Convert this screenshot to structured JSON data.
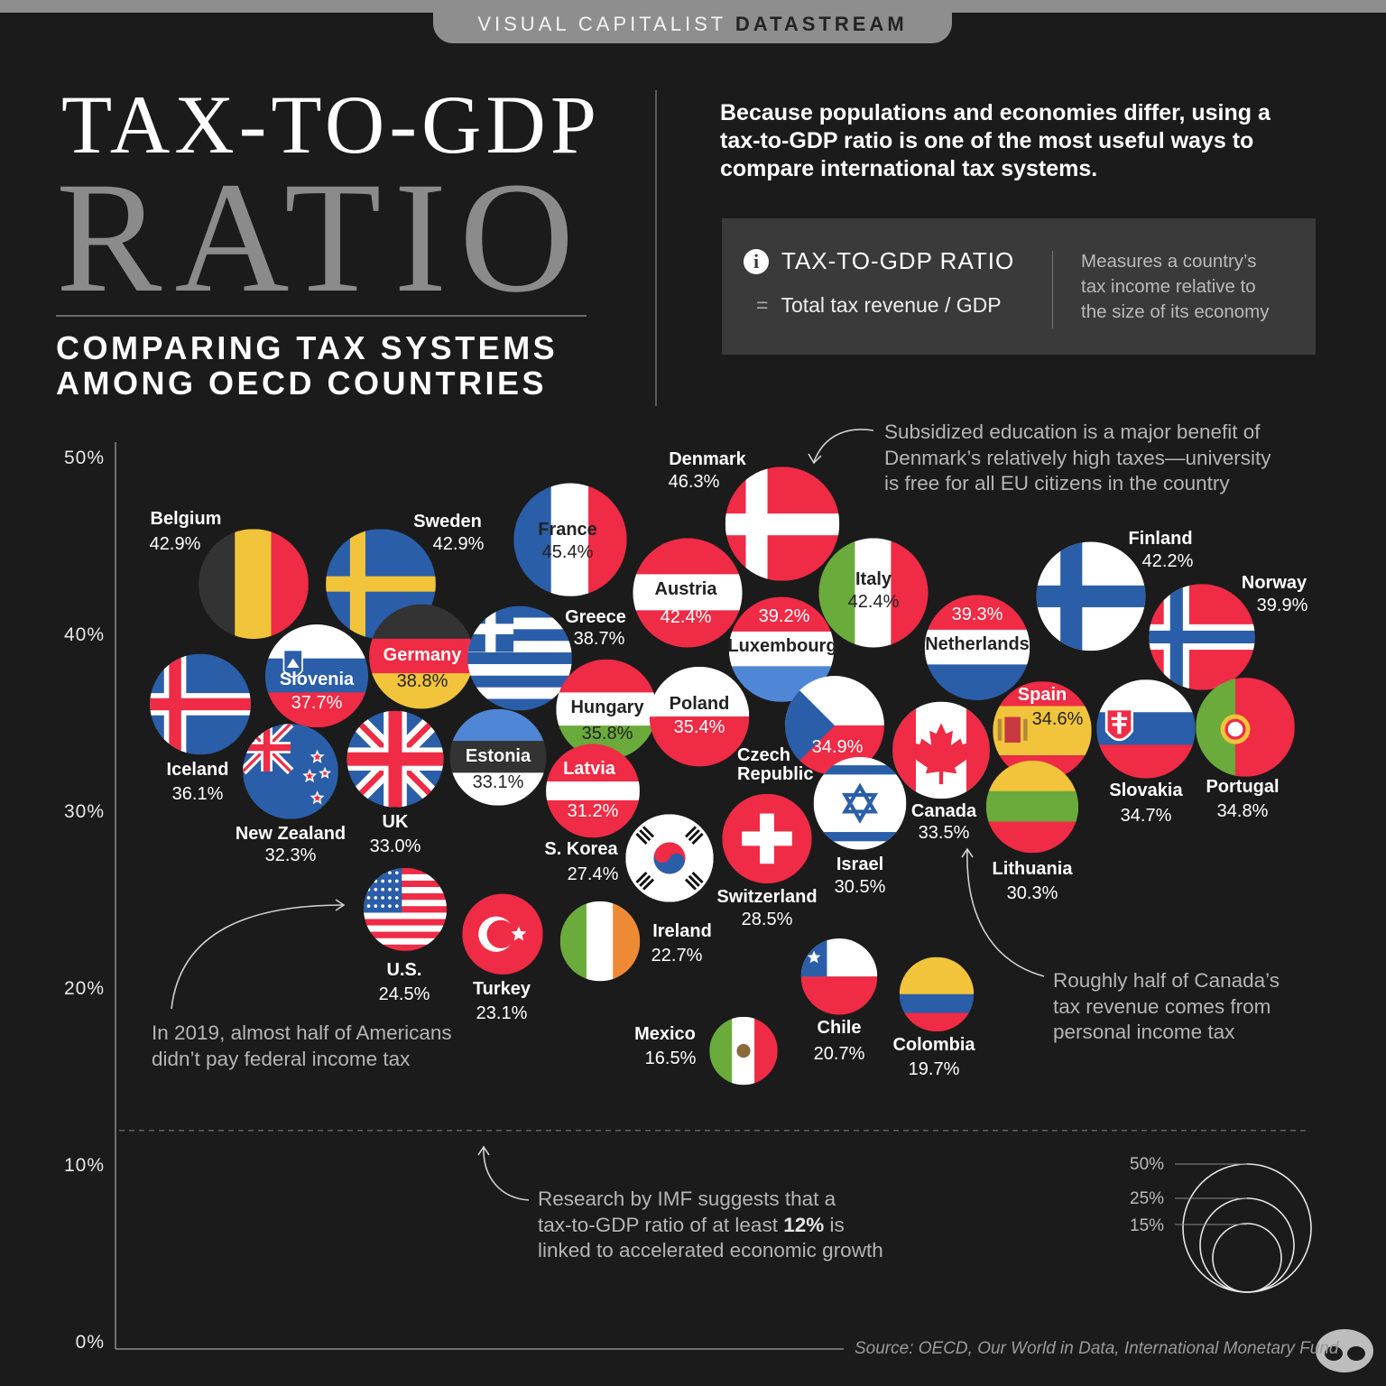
{
  "header": {
    "brand": "VISUAL CAPITALIST",
    "brand_suffix": "DATASTREAM"
  },
  "title": {
    "line1": "TAX-TO-GDP",
    "line2": "RATIO",
    "subtitle_line1": "COMPARING TAX SYSTEMS",
    "subtitle_line2": "AMONG OECD COUNTRIES"
  },
  "intro": "Because populations and economies differ, using a tax-to-GDP ratio is one of the most useful ways to compare international tax systems.",
  "definition": {
    "icon": "info-icon",
    "term": "TAX-TO-GDP RATIO",
    "equals": "=",
    "formula": "Total tax revenue / GDP",
    "description_lines": [
      "Measures a country’s",
      "tax income relative to",
      "the size of its economy"
    ]
  },
  "annotations": {
    "denmark": [
      "Subsidized education is a major benefit of",
      "Denmark’s relatively high taxes—university",
      "is free for all EU citizens in the country"
    ],
    "us": [
      "In 2019, almost half of Americans",
      "didn’t pay federal income tax"
    ],
    "canada": [
      "Roughly half of Canada’s",
      "tax revenue comes from",
      "personal income tax"
    ],
    "imf": {
      "line1": "Research by IMF suggests that a",
      "line2_pre": "tax-to-GDP ratio of at least ",
      "line2_bold": "12%",
      "line2_post": " is",
      "line3": "linked to accelerated economic growth"
    }
  },
  "source": "Source: OECD, Our World in Data, International Monetary Fund",
  "colors": {
    "background": "#1b1b1b",
    "red": "#ef2b45",
    "blue": "#2a5ea8",
    "light_blue": "#4f86d6",
    "yellow": "#f2c43b",
    "green": "#6aab3c",
    "dark": "#333333"
  },
  "chart_data": {
    "type": "bubble",
    "ylabel": "",
    "ylim": [
      0,
      50
    ],
    "y_ticks": [
      "0%",
      "10%",
      "20%",
      "30%",
      "40%",
      "50%"
    ],
    "reference_line": {
      "value": 12,
      "style": "dashed"
    },
    "size_legend": [
      "50%",
      "25%",
      "15%"
    ],
    "size_encodes": "tax-to-GDP ratio (%)",
    "countries": [
      {
        "name": "Denmark",
        "value": 46.3,
        "label": "46.3%"
      },
      {
        "name": "France",
        "value": 45.4,
        "label": "45.4%"
      },
      {
        "name": "Belgium",
        "value": 42.9,
        "label": "42.9%"
      },
      {
        "name": "Sweden",
        "value": 42.9,
        "label": "42.9%"
      },
      {
        "name": "Austria",
        "value": 42.4,
        "label": "42.4%"
      },
      {
        "name": "Italy",
        "value": 42.4,
        "label": "42.4%"
      },
      {
        "name": "Finland",
        "value": 42.2,
        "label": "42.2%"
      },
      {
        "name": "Norway",
        "value": 39.9,
        "label": "39.9%"
      },
      {
        "name": "Netherlands",
        "value": 39.3,
        "label": "39.3%"
      },
      {
        "name": "Luxembourg",
        "value": 39.2,
        "label": "39.2%"
      },
      {
        "name": "Germany",
        "value": 38.8,
        "label": "38.8%"
      },
      {
        "name": "Greece",
        "value": 38.7,
        "label": "38.7%"
      },
      {
        "name": "Slovenia",
        "value": 37.7,
        "label": "37.7%"
      },
      {
        "name": "Iceland",
        "value": 36.1,
        "label": "36.1%"
      },
      {
        "name": "Hungary",
        "value": 35.8,
        "label": "35.8%"
      },
      {
        "name": "Poland",
        "value": 35.4,
        "label": "35.4%"
      },
      {
        "name": "Czech Republic",
        "value": 34.9,
        "label": "34.9%"
      },
      {
        "name": "Portugal",
        "value": 34.8,
        "label": "34.8%"
      },
      {
        "name": "Slovakia",
        "value": 34.7,
        "label": "34.7%"
      },
      {
        "name": "Spain",
        "value": 34.6,
        "label": "34.6%"
      },
      {
        "name": "Canada",
        "value": 33.5,
        "label": "33.5%"
      },
      {
        "name": "Estonia",
        "value": 33.1,
        "label": "33.1%"
      },
      {
        "name": "UK",
        "value": 33.0,
        "label": "33.0%"
      },
      {
        "name": "New Zealand",
        "value": 32.3,
        "label": "32.3%"
      },
      {
        "name": "Latvia",
        "value": 31.2,
        "label": "31.2%"
      },
      {
        "name": "Israel",
        "value": 30.5,
        "label": "30.5%"
      },
      {
        "name": "Lithuania",
        "value": 30.3,
        "label": "30.3%"
      },
      {
        "name": "Switzerland",
        "value": 28.5,
        "label": "28.5%"
      },
      {
        "name": "S. Korea",
        "value": 27.4,
        "label": "27.4%"
      },
      {
        "name": "U.S.",
        "value": 24.5,
        "label": "24.5%"
      },
      {
        "name": "Turkey",
        "value": 23.1,
        "label": "23.1%"
      },
      {
        "name": "Ireland",
        "value": 22.7,
        "label": "22.7%"
      },
      {
        "name": "Chile",
        "value": 20.7,
        "label": "20.7%"
      },
      {
        "name": "Colombia",
        "value": 19.7,
        "label": "19.7%"
      },
      {
        "name": "Mexico",
        "value": 16.5,
        "label": "16.5%"
      }
    ]
  }
}
